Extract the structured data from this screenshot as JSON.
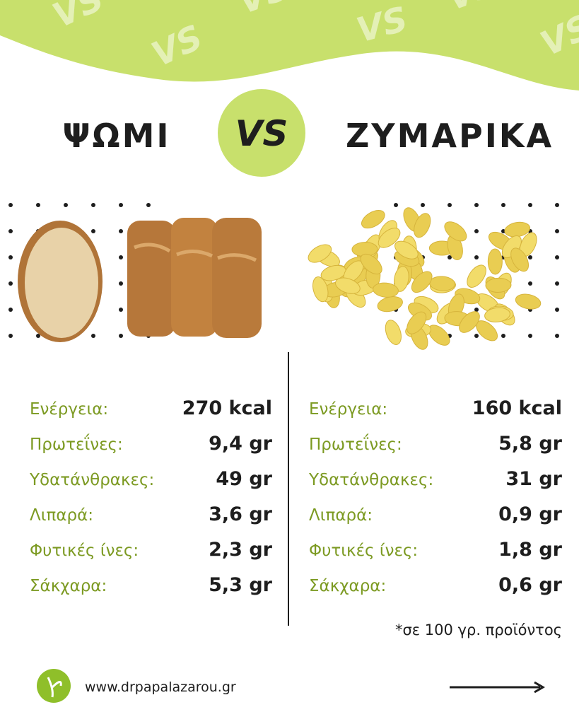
{
  "title": {
    "left": "ΨΩΜΙ",
    "vs": "VS",
    "right": "ΖΥΜΑΡΙΚΑ"
  },
  "columns": [
    {
      "rows": [
        {
          "label": "Ενέργεια:",
          "value": "270 kcal"
        },
        {
          "label": "Πρωτεΐνες:",
          "value": "9,4 gr"
        },
        {
          "label": "Υδατάνθρακες:",
          "value": "49 gr"
        },
        {
          "label": "Λιπαρά:",
          "value": "3,6 gr"
        },
        {
          "label": "Φυτικές ίνες:",
          "value": "2,3 gr"
        },
        {
          "label": "Σάκχαρα:",
          "value": "5,3 gr"
        }
      ]
    },
    {
      "rows": [
        {
          "label": "Ενέργεια:",
          "value": "160 kcal"
        },
        {
          "label": "Πρωτεΐνες:",
          "value": "5,8 gr"
        },
        {
          "label": "Υδατάνθρακες:",
          "value": "31 gr"
        },
        {
          "label": "Λιπαρά:",
          "value": "0,9 gr"
        },
        {
          "label": "Φυτικές ίνες:",
          "value": "1,8 gr"
        },
        {
          "label": "Σάκχαρα:",
          "value": "0,6 gr"
        }
      ]
    }
  ],
  "footnote": "*σε 100 γρ. προϊόντος",
  "website": "www.drpapalazarou.gr"
}
